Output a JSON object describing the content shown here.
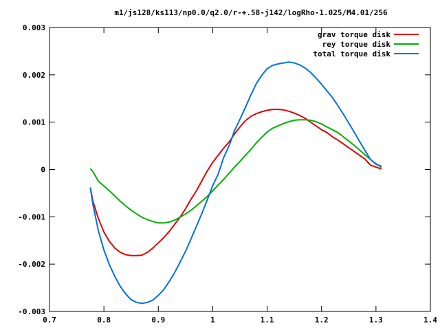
{
  "chart_data": {
    "type": "line",
    "title": "m1/js128/ks113/np0.0/q2.0/r-+.58-j142/logRho-1.025/M4.01/256",
    "xlabel": "",
    "ylabel": "",
    "xlim": [
      0.7,
      1.4
    ],
    "ylim": [
      -0.003,
      0.003
    ],
    "grid": false,
    "legend_position": "top-right",
    "x_ticks": [
      {
        "value": 0.7,
        "label": "0.7"
      },
      {
        "value": 0.8,
        "label": "0.8"
      },
      {
        "value": 0.9,
        "label": "0.9"
      },
      {
        "value": 1.0,
        "label": "1"
      },
      {
        "value": 1.1,
        "label": "1.1"
      },
      {
        "value": 1.2,
        "label": "1.2"
      },
      {
        "value": 1.3,
        "label": "1.3"
      },
      {
        "value": 1.4,
        "label": "1.4"
      }
    ],
    "y_ticks": [
      {
        "value": -0.003,
        "label": "-0.003"
      },
      {
        "value": -0.002,
        "label": "-0.002"
      },
      {
        "value": -0.001,
        "label": "-0.001"
      },
      {
        "value": 0.0,
        "label": "0"
      },
      {
        "value": 0.001,
        "label": "0.001"
      },
      {
        "value": 0.002,
        "label": "0.002"
      },
      {
        "value": 0.003,
        "label": "0.003"
      }
    ],
    "series": [
      {
        "name": "grav torque disk",
        "color": "#e00000",
        "points": [
          [
            0.775,
            -0.00039
          ],
          [
            0.78,
            -0.00068
          ],
          [
            0.79,
            -0.00104
          ],
          [
            0.8,
            -0.00132
          ],
          [
            0.81,
            -0.00152
          ],
          [
            0.82,
            -0.00166
          ],
          [
            0.83,
            -0.00175
          ],
          [
            0.84,
            -0.0018
          ],
          [
            0.85,
            -0.00182
          ],
          [
            0.86,
            -0.00182
          ],
          [
            0.87,
            -0.00181
          ],
          [
            0.88,
            -0.00175
          ],
          [
            0.89,
            -0.00166
          ],
          [
            0.9,
            -0.00155
          ],
          [
            0.91,
            -0.00144
          ],
          [
            0.92,
            -0.00131
          ],
          [
            0.93,
            -0.00116
          ],
          [
            0.94,
            -0.00101
          ],
          [
            0.95,
            -0.00083
          ],
          [
            0.96,
            -0.00063
          ],
          [
            0.97,
            -0.00045
          ],
          [
            0.98,
            -0.00024
          ],
          [
            0.99,
            -3e-05
          ],
          [
            1.0,
            0.00015
          ],
          [
            1.01,
            0.0003
          ],
          [
            1.02,
            0.00045
          ],
          [
            1.03,
            0.00058
          ],
          [
            1.04,
            0.00075
          ],
          [
            1.05,
            0.0009
          ],
          [
            1.06,
            0.00103
          ],
          [
            1.07,
            0.00112
          ],
          [
            1.08,
            0.00118
          ],
          [
            1.09,
            0.00122
          ],
          [
            1.1,
            0.00125
          ],
          [
            1.11,
            0.00127
          ],
          [
            1.12,
            0.00127
          ],
          [
            1.13,
            0.00126
          ],
          [
            1.14,
            0.00123
          ],
          [
            1.15,
            0.00119
          ],
          [
            1.16,
            0.00114
          ],
          [
            1.17,
            0.00108
          ],
          [
            1.18,
            0.001
          ],
          [
            1.19,
            0.00092
          ],
          [
            1.2,
            0.00084
          ],
          [
            1.21,
            0.00078
          ],
          [
            1.22,
            0.00069
          ],
          [
            1.23,
            0.00062
          ],
          [
            1.24,
            0.00054
          ],
          [
            1.25,
            0.00046
          ],
          [
            1.26,
            0.00038
          ],
          [
            1.27,
            0.0003
          ],
          [
            1.28,
            0.00022
          ],
          [
            1.29,
            9e-05
          ],
          [
            1.3,
            5e-05
          ],
          [
            1.31,
            1e-05
          ]
        ]
      },
      {
        "name": "rey torque disk",
        "color": "#00b000",
        "points": [
          [
            0.775,
            2e-05
          ],
          [
            0.78,
            -5e-05
          ],
          [
            0.79,
            -0.00025
          ],
          [
            0.8,
            -0.00035
          ],
          [
            0.81,
            -0.00045
          ],
          [
            0.82,
            -0.00056
          ],
          [
            0.83,
            -0.00067
          ],
          [
            0.84,
            -0.00077
          ],
          [
            0.85,
            -0.00086
          ],
          [
            0.86,
            -0.00094
          ],
          [
            0.87,
            -0.00101
          ],
          [
            0.88,
            -0.00106
          ],
          [
            0.89,
            -0.0011
          ],
          [
            0.9,
            -0.00113
          ],
          [
            0.91,
            -0.00113
          ],
          [
            0.92,
            -0.00111
          ],
          [
            0.93,
            -0.00107
          ],
          [
            0.94,
            -0.00101
          ],
          [
            0.95,
            -0.00094
          ],
          [
            0.96,
            -0.00086
          ],
          [
            0.97,
            -0.00077
          ],
          [
            0.98,
            -0.00067
          ],
          [
            0.99,
            -0.00057
          ],
          [
            1.0,
            -0.00045
          ],
          [
            1.01,
            -0.00033
          ],
          [
            1.02,
            -0.00021
          ],
          [
            1.03,
            -8e-05
          ],
          [
            1.04,
            5e-05
          ],
          [
            1.05,
            0.00017
          ],
          [
            1.06,
            0.0003
          ],
          [
            1.07,
            0.00042
          ],
          [
            1.08,
            0.00056
          ],
          [
            1.09,
            0.00068
          ],
          [
            1.1,
            0.00079
          ],
          [
            1.11,
            0.00087
          ],
          [
            1.12,
            0.00092
          ],
          [
            1.13,
            0.00097
          ],
          [
            1.14,
            0.00101
          ],
          [
            1.15,
            0.00104
          ],
          [
            1.16,
            0.00105
          ],
          [
            1.17,
            0.00105
          ],
          [
            1.18,
            0.00104
          ],
          [
            1.19,
            0.00101
          ],
          [
            1.2,
            0.00096
          ],
          [
            1.21,
            0.0009
          ],
          [
            1.22,
            0.00084
          ],
          [
            1.23,
            0.00078
          ],
          [
            1.24,
            0.00069
          ],
          [
            1.25,
            0.0006
          ],
          [
            1.26,
            0.00051
          ],
          [
            1.27,
            0.00041
          ],
          [
            1.28,
            0.00031
          ],
          [
            1.29,
            0.00021
          ],
          [
            1.3,
            0.00012
          ],
          [
            1.31,
            4e-05
          ]
        ]
      },
      {
        "name": "total torque disk",
        "color": "#0070e0",
        "points": [
          [
            0.775,
            -0.00038
          ],
          [
            0.78,
            -0.00075
          ],
          [
            0.79,
            -0.0013
          ],
          [
            0.8,
            -0.0017
          ],
          [
            0.81,
            -0.00201
          ],
          [
            0.82,
            -0.00226
          ],
          [
            0.83,
            -0.00247
          ],
          [
            0.84,
            -0.00263
          ],
          [
            0.85,
            -0.00275
          ],
          [
            0.86,
            -0.00281
          ],
          [
            0.87,
            -0.00283
          ],
          [
            0.88,
            -0.00281
          ],
          [
            0.89,
            -0.00276
          ],
          [
            0.9,
            -0.00266
          ],
          [
            0.91,
            -0.00254
          ],
          [
            0.92,
            -0.00237
          ],
          [
            0.93,
            -0.00218
          ],
          [
            0.94,
            -0.00196
          ],
          [
            0.95,
            -0.00173
          ],
          [
            0.96,
            -0.00147
          ],
          [
            0.97,
            -0.0012
          ],
          [
            0.98,
            -0.00093
          ],
          [
            0.99,
            -0.00064
          ],
          [
            1.0,
            -0.00034
          ],
          [
            1.01,
            -0.0001
          ],
          [
            1.02,
            0.00025
          ],
          [
            1.03,
            0.0005
          ],
          [
            1.04,
            0.00082
          ],
          [
            1.05,
            0.00106
          ],
          [
            1.06,
            0.00131
          ],
          [
            1.07,
            0.00157
          ],
          [
            1.08,
            0.00181
          ],
          [
            1.09,
            0.00199
          ],
          [
            1.1,
            0.00213
          ],
          [
            1.11,
            0.0022
          ],
          [
            1.12,
            0.00223
          ],
          [
            1.13,
            0.00225
          ],
          [
            1.14,
            0.00227
          ],
          [
            1.15,
            0.00225
          ],
          [
            1.16,
            0.00221
          ],
          [
            1.17,
            0.00214
          ],
          [
            1.18,
            0.00205
          ],
          [
            1.19,
            0.00193
          ],
          [
            1.2,
            0.0018
          ],
          [
            1.21,
            0.00166
          ],
          [
            1.22,
            0.00152
          ],
          [
            1.23,
            0.00135
          ],
          [
            1.24,
            0.00117
          ],
          [
            1.25,
            0.00098
          ],
          [
            1.26,
            0.00079
          ],
          [
            1.27,
            0.00059
          ],
          [
            1.28,
            0.0004
          ],
          [
            1.29,
            0.00021
          ],
          [
            1.3,
            0.00011
          ],
          [
            1.31,
            7e-05
          ]
        ]
      }
    ]
  }
}
